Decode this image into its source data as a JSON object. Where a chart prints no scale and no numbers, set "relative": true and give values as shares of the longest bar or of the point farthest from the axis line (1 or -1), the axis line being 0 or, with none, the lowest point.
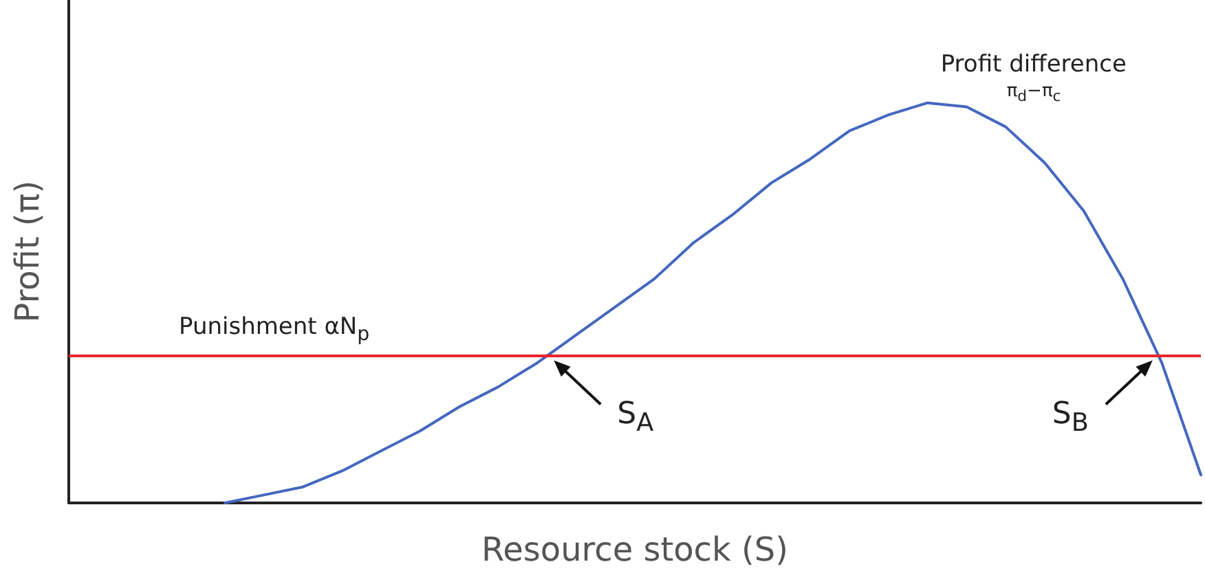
{
  "chart_data": {
    "type": "line",
    "relative": true,
    "xlabel": "Resource stock (S)",
    "ylabel": "Profit (π)",
    "categories": [
      null,
      null,
      null,
      null,
      null,
      null,
      null,
      null,
      null,
      null,
      null,
      null,
      null,
      null,
      null,
      null,
      null,
      null,
      null,
      null,
      null,
      null,
      null,
      null,
      null,
      null,
      null,
      null,
      null,
      null
    ],
    "series": [
      {
        "name": "Profit difference",
        "color": "#4467bf",
        "values": [
          null,
          null,
          null,
          null,
          0.0,
          0.02,
          0.04,
          0.08,
          0.13,
          0.18,
          0.24,
          0.29,
          0.35,
          0.42,
          0.49,
          0.56,
          0.65,
          0.72,
          0.8,
          0.86,
          0.93,
          0.97,
          1.0,
          0.99,
          0.94,
          0.85,
          0.73,
          0.56,
          0.35,
          0.07
        ]
      }
    ],
    "ref_lines": [
      {
        "axis": "y",
        "value": 0.37,
        "label": "Punishment αN$_{p}$",
        "color": "#e8262b"
      }
    ],
    "annotations": [
      "π$_{d}$−π$_{c}$",
      "S$_{A}$",
      "S$_{B}$"
    ],
    "legend": false,
    "grid": false,
    "marker": "none",
    "line_style": "solid"
  }
}
